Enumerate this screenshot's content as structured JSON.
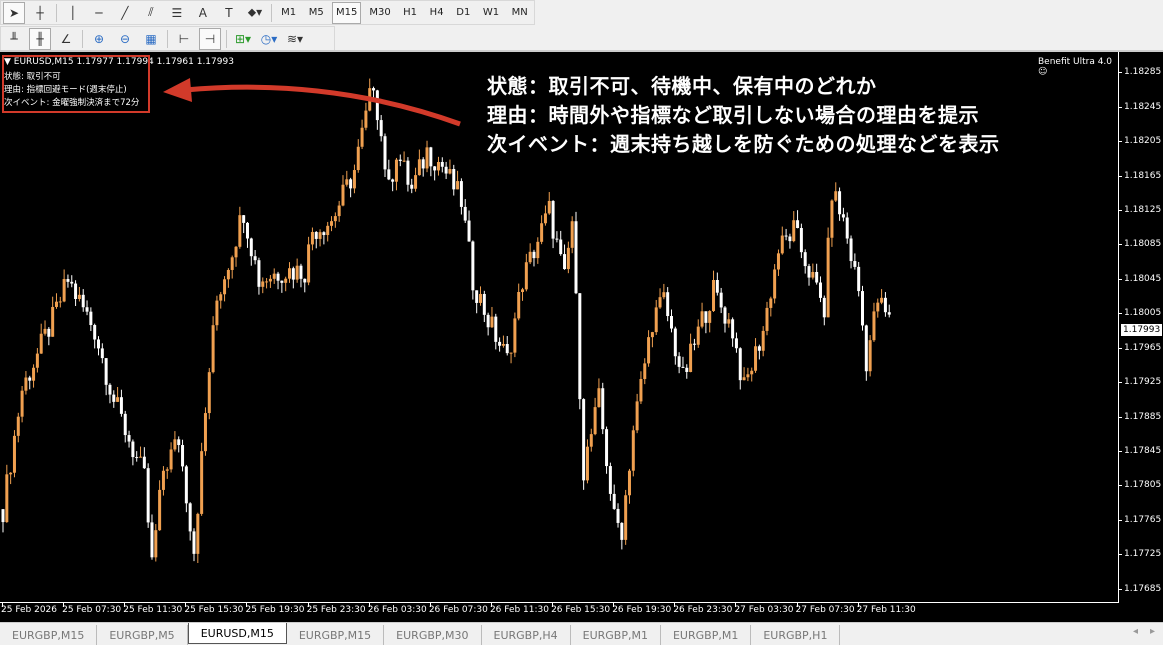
{
  "toolbar1": {
    "tools": [
      {
        "name": "cursor-icon",
        "glyph": "➤"
      },
      {
        "name": "crosshair-icon",
        "glyph": "┼"
      },
      {
        "name": "vertical-line-icon",
        "glyph": "│"
      },
      {
        "name": "horizontal-line-icon",
        "glyph": "─"
      },
      {
        "name": "trendline-icon",
        "glyph": "╱"
      },
      {
        "name": "channel-icon",
        "glyph": "⫽"
      },
      {
        "name": "fibonacci-icon",
        "glyph": "☰"
      },
      {
        "name": "text-icon",
        "glyph": "A"
      },
      {
        "name": "text-label-icon",
        "glyph": "T"
      },
      {
        "name": "shapes-dropdown-icon",
        "glyph": "⬥▾"
      }
    ],
    "timeframes": [
      "M1",
      "M5",
      "M15",
      "M30",
      "H1",
      "H4",
      "D1",
      "W1",
      "MN"
    ],
    "active_timeframe": "M15"
  },
  "toolbar2": {
    "tools": [
      {
        "name": "bar-chart-icon",
        "glyph": "╨"
      },
      {
        "name": "candlestick-icon",
        "glyph": "╫"
      },
      {
        "name": "line-chart-icon",
        "glyph": "∠"
      },
      {
        "name": "zoom-in-icon",
        "glyph": "⊕"
      },
      {
        "name": "zoom-out-icon",
        "glyph": "⊖"
      },
      {
        "name": "tile-windows-icon",
        "glyph": "▦"
      },
      {
        "name": "chart-shift-icon",
        "glyph": "⊢"
      },
      {
        "name": "autoscroll-icon",
        "glyph": "⊣"
      },
      {
        "name": "indicators-dropdown-icon",
        "glyph": "⊞▾"
      },
      {
        "name": "periods-dropdown-icon",
        "glyph": "◷▾"
      },
      {
        "name": "templates-dropdown-icon",
        "glyph": "≋▾"
      }
    ]
  },
  "chart": {
    "symbol_line": "▼ EURUSD,M15  1.17977 1.17994 1.17961 1.17993",
    "ea_name": "Benefit Ultra 4.0 ☺",
    "overlay": [
      "状態: 取引不可",
      "理由: 指標回避モード(週末停止)",
      "次イベント: 金曜強制決済まで72分"
    ],
    "annotation": [
      "状態：取引不可、待機中、保有中のどれか",
      "理由：時間外や指標など取引しない場合の理由を提示",
      "次イベント：週末持ち越しを防ぐための処理などを表示"
    ],
    "current_price": "1.17993",
    "colors": {
      "background": "#000000",
      "bull": "#f0a050",
      "bear": "#ffffff",
      "annotation": "#d23a2a"
    }
  },
  "chart_data": {
    "type": "candlestick",
    "symbol": "EURUSD",
    "timeframe": "M15",
    "ylim": [
      1.17665,
      1.18305
    ],
    "y_ticks": [
      "1.18285",
      "1.18245",
      "1.18205",
      "1.18165",
      "1.18125",
      "1.18085",
      "1.18045",
      "1.18005",
      "1.17965",
      "1.17925",
      "1.17885",
      "1.17845",
      "1.17805",
      "1.17765",
      "1.17725",
      "1.17685"
    ],
    "x_ticks": [
      "25 Feb 2026",
      "25 Feb 07:30",
      "25 Feb 11:30",
      "25 Feb 15:30",
      "25 Feb 19:30",
      "25 Feb 23:30",
      "26 Feb 03:30",
      "26 Feb 07:30",
      "26 Feb 11:30",
      "26 Feb 15:30",
      "26 Feb 19:30",
      "26 Feb 23:30",
      "27 Feb 03:30",
      "27 Feb 07:30",
      "27 Feb 11:30"
    ],
    "bars_per_tick": 16,
    "close_path": [
      [
        0,
        1.17774
      ],
      [
        5,
        1.17913
      ],
      [
        13,
        1.17994
      ],
      [
        17,
        1.1804
      ],
      [
        24,
        1.17982
      ],
      [
        29,
        1.17901
      ],
      [
        37,
        1.17809
      ],
      [
        39,
        1.1771
      ],
      [
        42,
        1.1782
      ],
      [
        46,
        1.17855
      ],
      [
        50,
        1.17728
      ],
      [
        54,
        1.17936
      ],
      [
        56,
        1.18017
      ],
      [
        63,
        1.18121
      ],
      [
        67,
        1.1804
      ],
      [
        73,
        1.18051
      ],
      [
        79,
        1.18051
      ],
      [
        81,
        1.18098
      ],
      [
        86,
        1.18109
      ],
      [
        92,
        1.18167
      ],
      [
        97,
        1.18271
      ],
      [
        101,
        1.18144
      ],
      [
        103,
        1.1819
      ],
      [
        107,
        1.18144
      ],
      [
        111,
        1.1819
      ],
      [
        115,
        1.18173
      ],
      [
        120,
        1.18132
      ],
      [
        123,
        1.1804
      ],
      [
        127,
        1.17994
      ],
      [
        132,
        1.17947
      ],
      [
        136,
        1.1804
      ],
      [
        143,
        1.18121
      ],
      [
        147,
        1.1804
      ],
      [
        149,
        1.18109
      ],
      [
        152,
        1.1782
      ],
      [
        156,
        1.17901
      ],
      [
        160,
        1.17762
      ],
      [
        162,
        1.17751
      ],
      [
        165,
        1.17867
      ],
      [
        170,
        1.17994
      ],
      [
        173,
        1.18017
      ],
      [
        178,
        1.17924
      ],
      [
        183,
        1.17994
      ],
      [
        186,
        1.18028
      ],
      [
        191,
        1.17982
      ],
      [
        194,
        1.17913
      ],
      [
        199,
        1.17982
      ],
      [
        203,
        1.18075
      ],
      [
        207,
        1.18098
      ],
      [
        212,
        1.1804
      ],
      [
        215,
        1.18005
      ],
      [
        217,
        1.18144
      ],
      [
        220,
        1.18109
      ],
      [
        224,
        1.18028
      ],
      [
        226,
        1.17947
      ],
      [
        229,
        1.18017
      ],
      [
        232,
        1.17993
      ]
    ]
  },
  "tabs": {
    "items": [
      "EURGBP,M15",
      "EURGBP,M5",
      "EURUSD,M15",
      "EURGBP,M15",
      "EURGBP,M30",
      "EURGBP,H4",
      "EURGBP,M1",
      "EURGBP,M1",
      "EURGBP,H1"
    ],
    "active": 2
  }
}
